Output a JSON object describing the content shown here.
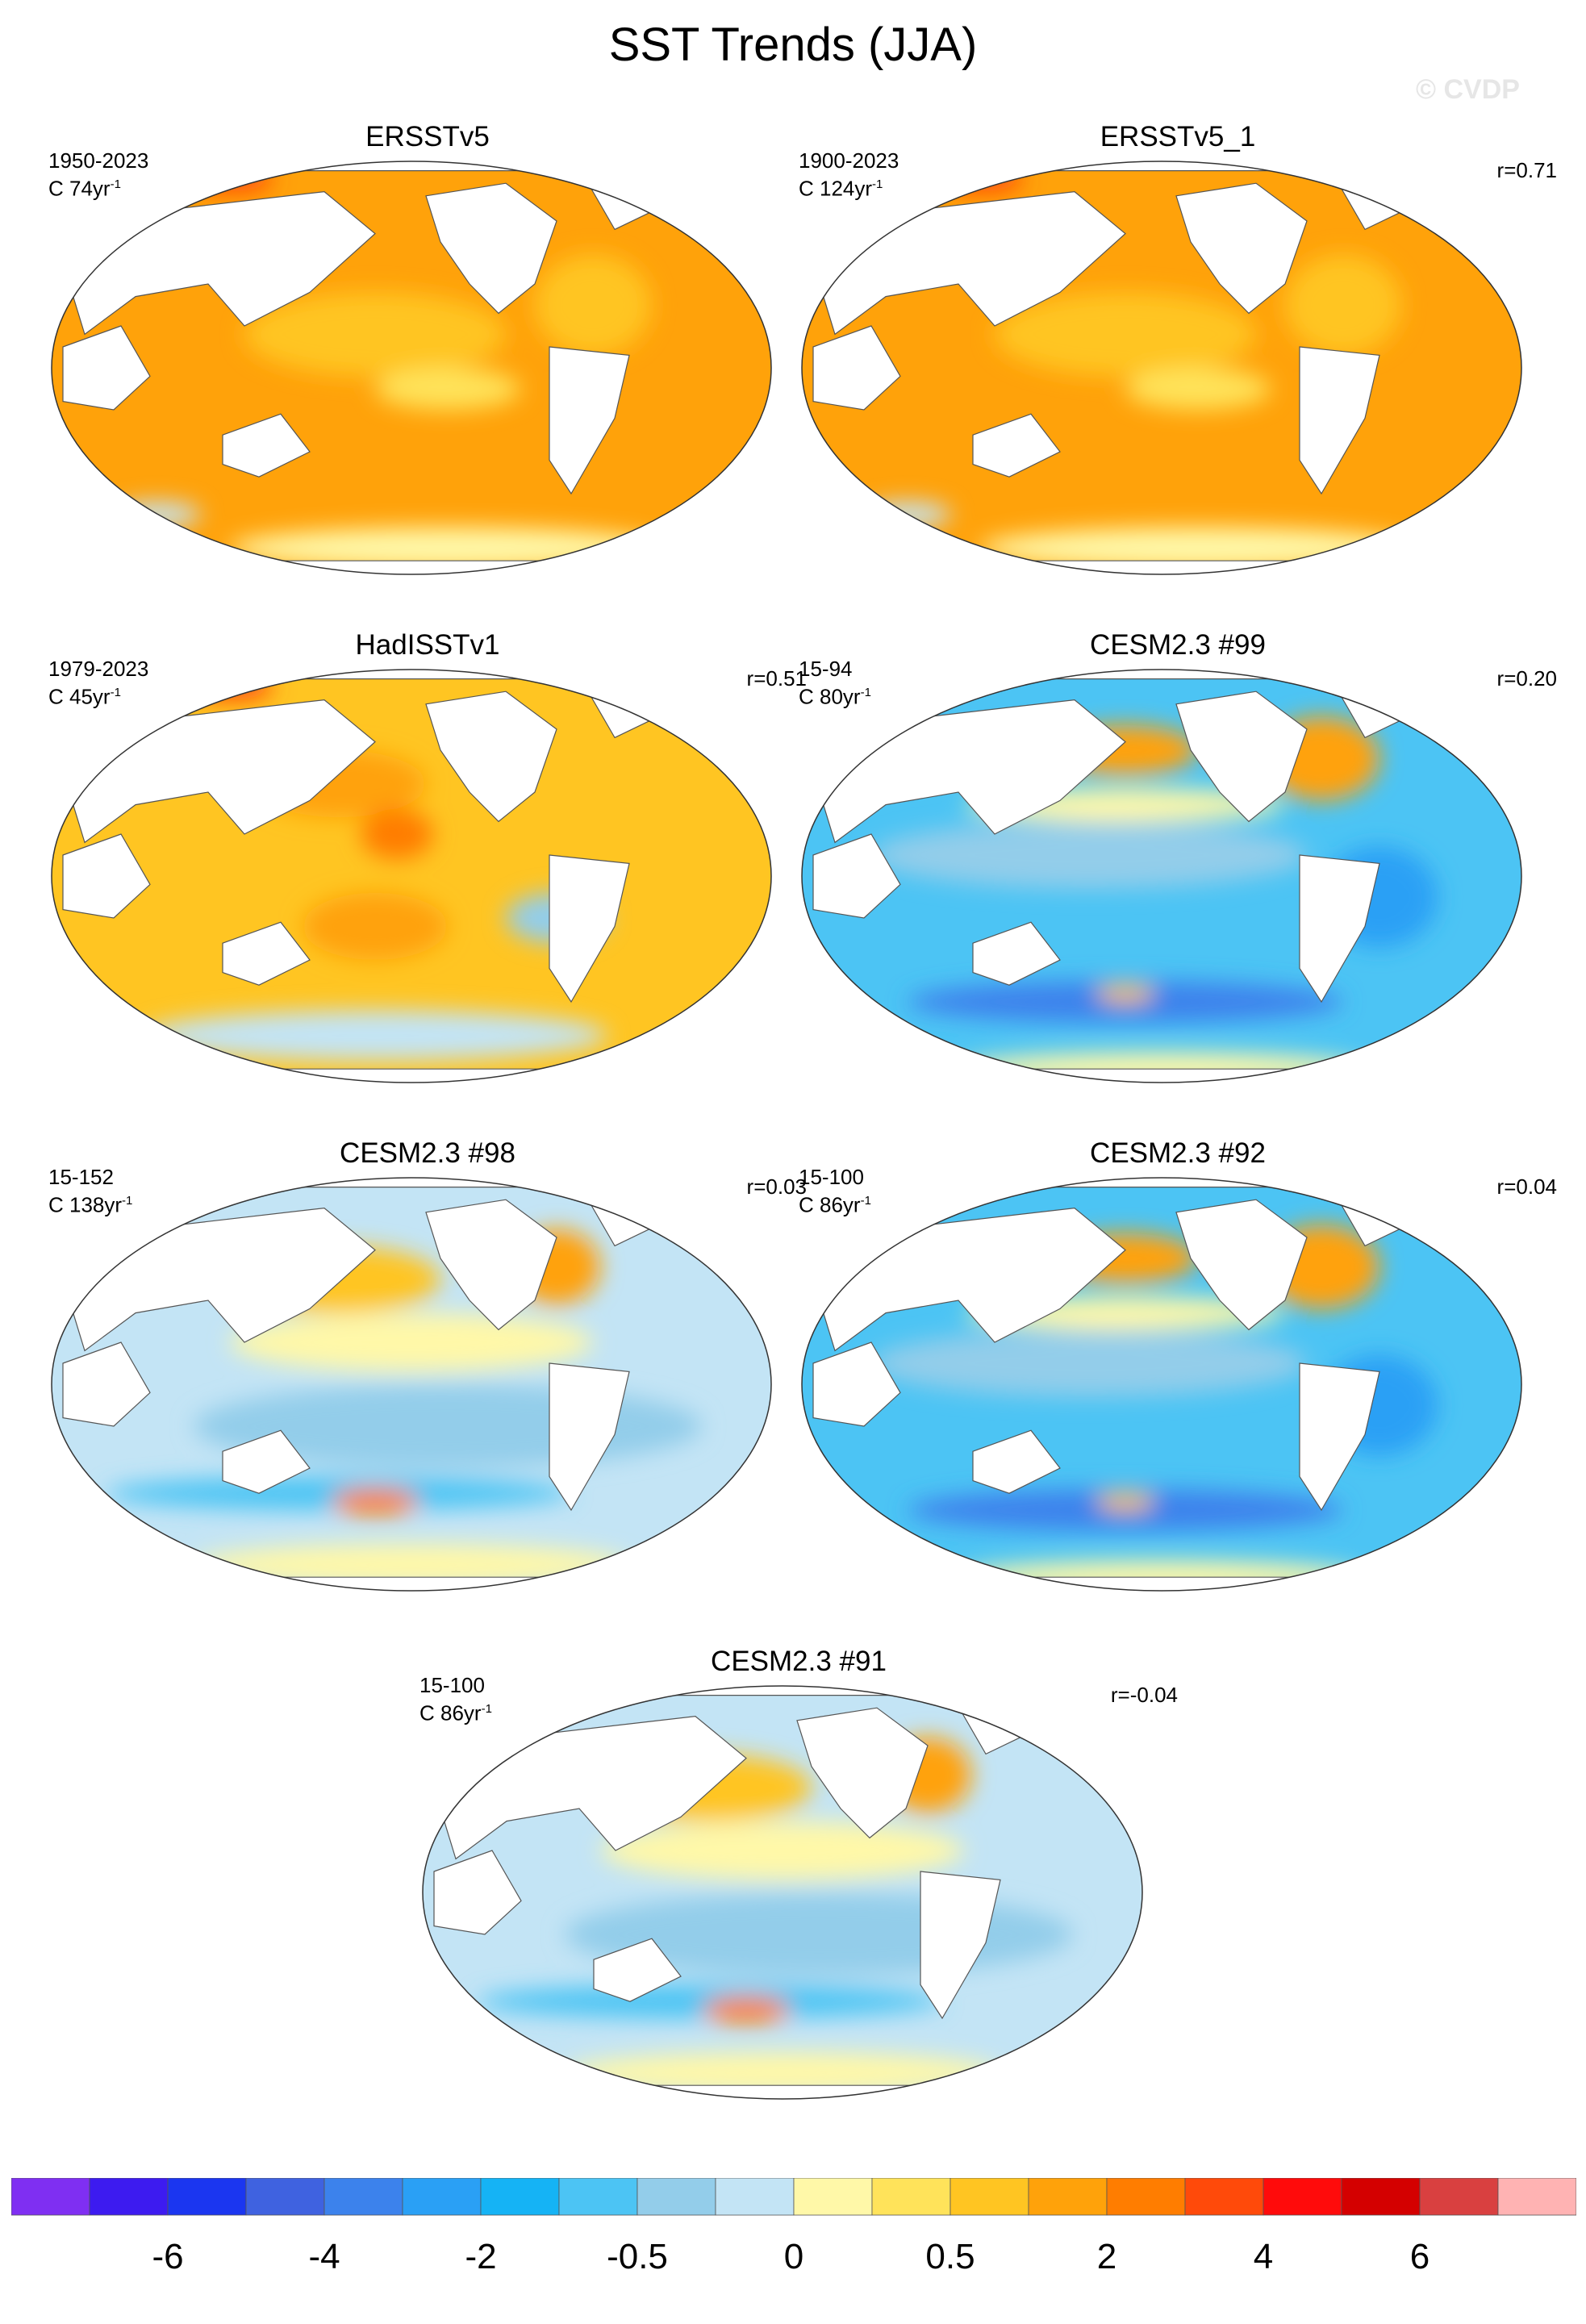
{
  "figure_title": "SST Trends (JJA)",
  "watermark": "© CVDP",
  "chart_data": {
    "type": "map-panels",
    "variable": "SST trend",
    "season": "JJA",
    "projection": "Robinson (global)",
    "panels": [
      {
        "title": "ERSSTv5",
        "period": "1950-2023",
        "units_line": "C 74yr",
        "units_exp": "-1",
        "r": "",
        "pattern": "warm"
      },
      {
        "title": "ERSSTv5_1",
        "period": "1900-2023",
        "units_line": "C 124yr",
        "units_exp": "-1",
        "r": "r=0.71",
        "pattern": "warm"
      },
      {
        "title": "HadISSTv1",
        "period": "1979-2023",
        "units_line": "C 45yr",
        "units_exp": "-1",
        "r": "r=0.51",
        "pattern": "warm-mixed"
      },
      {
        "title": "CESM2.3 #99",
        "period": "15-94",
        "units_line": "C 80yr",
        "units_exp": "-1",
        "r": "r=0.20",
        "pattern": "cool"
      },
      {
        "title": "CESM2.3 #98",
        "period": "15-152",
        "units_line": "C 138yr",
        "units_exp": "-1",
        "r": "r=0.03",
        "pattern": "mixed"
      },
      {
        "title": "CESM2.3 #92",
        "period": "15-100",
        "units_line": "C 86yr",
        "units_exp": "-1",
        "r": "r=0.04",
        "pattern": "cool"
      },
      {
        "title": "CESM2.3 #91",
        "period": "15-100",
        "units_line": "C 86yr",
        "units_exp": "-1",
        "r": "r=-0.04",
        "pattern": "mixed"
      }
    ],
    "colorbar": {
      "levels": [
        -8,
        -6,
        -5,
        -4,
        -3,
        -2,
        -1,
        -0.5,
        -0.25,
        0,
        0.25,
        0.5,
        1,
        2,
        3,
        4,
        5,
        6,
        8
      ],
      "tick_labels": [
        "-6",
        "-4",
        "-2",
        "-0.5",
        "0",
        "0.5",
        "2",
        "4",
        "6"
      ],
      "colors": [
        "#7f2ff2",
        "#3d1bf0",
        "#1b36f0",
        "#3f62e0",
        "#3c82ec",
        "#2aa0f5",
        "#15b3f5",
        "#4cc4f4",
        "#93cdea",
        "#c3e4f5",
        "#fff8a8",
        "#ffe35a",
        "#ffc522",
        "#ffa20a",
        "#ff7d00",
        "#ff4a0a",
        "#ff0b0b",
        "#d40000",
        "#d94040",
        "#ffb3b3"
      ]
    }
  }
}
